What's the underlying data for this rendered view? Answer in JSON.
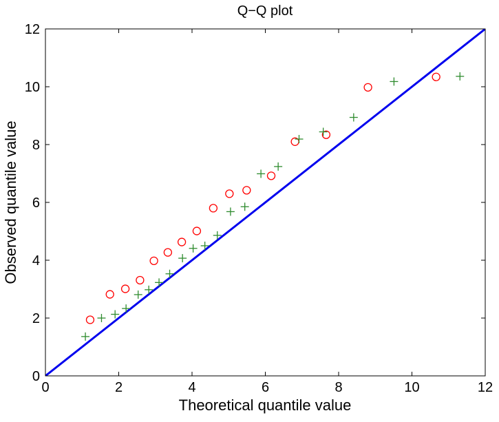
{
  "chart_data": {
    "type": "scatter",
    "title": "Q−Q plot",
    "xlabel": "Theoretical quantile value",
    "ylabel": "Observed quantile value",
    "xlim": [
      0,
      12
    ],
    "ylim": [
      0,
      12
    ],
    "xticks": [
      "0",
      "2",
      "4",
      "6",
      "8",
      "10",
      "12"
    ],
    "yticks": [
      "0",
      "2",
      "4",
      "6",
      "8",
      "10",
      "12"
    ],
    "grid": false,
    "series": [
      {
        "marker": "circle",
        "color": "#ff0000",
        "points": [
          [
            1.22,
            1.94
          ],
          [
            1.76,
            2.82
          ],
          [
            2.18,
            3.01
          ],
          [
            2.58,
            3.31
          ],
          [
            2.96,
            3.98
          ],
          [
            3.34,
            4.27
          ],
          [
            3.72,
            4.63
          ],
          [
            4.13,
            5.01
          ],
          [
            4.58,
            5.8
          ],
          [
            5.02,
            6.3
          ],
          [
            5.49,
            6.42
          ],
          [
            6.16,
            6.92
          ],
          [
            6.81,
            8.1
          ],
          [
            7.66,
            8.34
          ],
          [
            8.8,
            9.98
          ],
          [
            10.66,
            10.34
          ]
        ]
      },
      {
        "marker": "plus",
        "color": "#2e8b2e",
        "points": [
          [
            1.09,
            1.36
          ],
          [
            1.53,
            2.0
          ],
          [
            1.9,
            2.13
          ],
          [
            2.2,
            2.33
          ],
          [
            2.53,
            2.81
          ],
          [
            2.82,
            2.98
          ],
          [
            3.1,
            3.23
          ],
          [
            3.39,
            3.53
          ],
          [
            3.74,
            4.07
          ],
          [
            4.03,
            4.41
          ],
          [
            4.35,
            4.5
          ],
          [
            4.69,
            4.86
          ],
          [
            5.05,
            5.68
          ],
          [
            5.44,
            5.85
          ],
          [
            5.88,
            6.99
          ],
          [
            6.35,
            7.24
          ],
          [
            6.92,
            8.19
          ],
          [
            7.58,
            8.44
          ],
          [
            8.41,
            8.94
          ],
          [
            9.51,
            10.18
          ],
          [
            11.31,
            10.36
          ]
        ]
      }
    ],
    "reference_line": {
      "color": "#0000ee",
      "from": [
        0,
        0
      ],
      "to": [
        12,
        12
      ]
    }
  }
}
